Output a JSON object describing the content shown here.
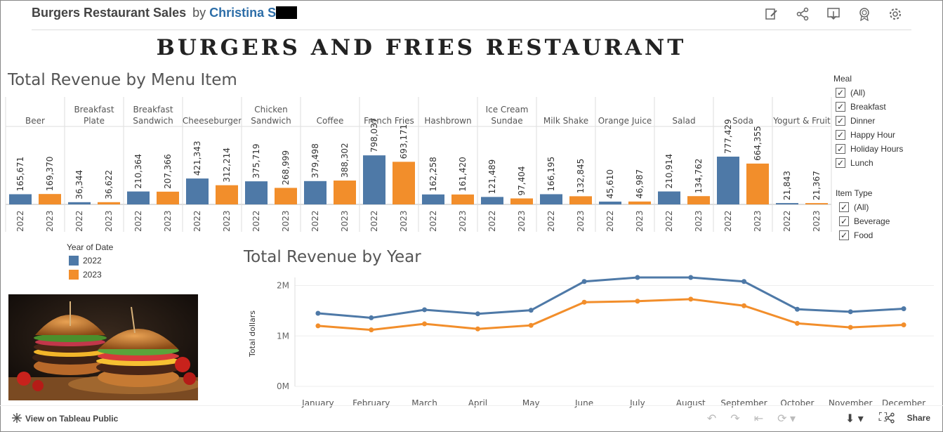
{
  "header": {
    "title": "Burgers Restaurant Sales",
    "by": "by",
    "author": "Christina S"
  },
  "banner": "BURGERS AND FRIES RESTAURANT",
  "toolbar_icons": [
    "edit-icon",
    "share-icon",
    "download-icon",
    "badge-icon",
    "gear-icon"
  ],
  "colors": {
    "y2022": "#4e79a7",
    "y2023": "#f28e2b"
  },
  "menu_chart": {
    "title": "Total Revenue by Menu Item"
  },
  "year_chart": {
    "title": "Total Revenue by Year"
  },
  "legend": {
    "title": "Year of Date",
    "items": [
      {
        "label": "2022",
        "color": "#4e79a7"
      },
      {
        "label": "2023",
        "color": "#f28e2b"
      }
    ]
  },
  "filters": {
    "meal": {
      "title": "Meal",
      "options": [
        "(All)",
        "Breakfast",
        "Dinner",
        "Happy Hour",
        "Holiday Hours",
        "Lunch"
      ]
    },
    "item_type": {
      "title": "Item Type",
      "options": [
        "(All)",
        "Beverage",
        "Food"
      ]
    }
  },
  "footer": {
    "view_label": "View on Tableau Public",
    "share_label": "Share"
  },
  "chart_data": [
    {
      "type": "bar",
      "title": "Total Revenue by Menu Item",
      "categories": [
        "Beer",
        "Breakfast Plate",
        "Breakfast Sandwich",
        "Cheeseburger",
        "Chicken Sandwich",
        "Coffee",
        "French Fries",
        "Hashbrown",
        "Ice Cream Sundae",
        "Milk Shake",
        "Orange Juice",
        "Salad",
        "Soda",
        "Yogurt & Fruit"
      ],
      "category_lines": [
        [
          "Beer"
        ],
        [
          "Breakfast",
          "Plate"
        ],
        [
          "Breakfast",
          "Sandwich"
        ],
        [
          "Cheeseburger"
        ],
        [
          "Chicken",
          "Sandwich"
        ],
        [
          "Coffee"
        ],
        [
          "French Fries"
        ],
        [
          "Hashbrown"
        ],
        [
          "Ice Cream",
          "Sundae"
        ],
        [
          "Milk Shake"
        ],
        [
          "Orange Juice"
        ],
        [
          "Salad"
        ],
        [
          "Soda"
        ],
        [
          "Yogurt & Fruit"
        ]
      ],
      "sub_categories": [
        "2022",
        "2023"
      ],
      "series": [
        {
          "name": "2022",
          "values": [
            165671,
            36344,
            210364,
            421343,
            375719,
            379498,
            798037,
            162258,
            121489,
            166195,
            45610,
            210914,
            777429,
            21843
          ]
        },
        {
          "name": "2023",
          "values": [
            169370,
            36622,
            207366,
            312214,
            268999,
            388302,
            693171,
            161420,
            97404,
            132845,
            46987,
            134762,
            664355,
            21367
          ]
        }
      ],
      "value_labels": [
        [
          "165,671",
          "169,370"
        ],
        [
          "36,344",
          "36,622"
        ],
        [
          "210,364",
          "207,366"
        ],
        [
          "421,343",
          "312,214"
        ],
        [
          "375,719",
          "268,999"
        ],
        [
          "379,498",
          "388,302"
        ],
        [
          "798,037",
          "693,171"
        ],
        [
          "162,258",
          "161,420"
        ],
        [
          "121,489",
          "97,404"
        ],
        [
          "166,195",
          "132,845"
        ],
        [
          "45,610",
          "46,987"
        ],
        [
          "210,914",
          "134,762"
        ],
        [
          "777,429",
          "664,355"
        ],
        [
          "21,843",
          "21,367"
        ]
      ]
    },
    {
      "type": "line",
      "title": "Total Revenue by Year",
      "ylabel": "Total dollars",
      "x": [
        "January",
        "February",
        "March",
        "April",
        "May",
        "June",
        "July",
        "August",
        "September",
        "October",
        "November",
        "December"
      ],
      "yticks": [
        "0M",
        "1M",
        "2M"
      ],
      "ylim": [
        0,
        2300000
      ],
      "series": [
        {
          "name": "2022",
          "values": [
            1450000,
            1360000,
            1520000,
            1440000,
            1510000,
            2080000,
            2160000,
            2160000,
            2080000,
            1530000,
            1480000,
            1540000
          ]
        },
        {
          "name": "2023",
          "values": [
            1200000,
            1120000,
            1240000,
            1140000,
            1210000,
            1670000,
            1690000,
            1730000,
            1600000,
            1250000,
            1170000,
            1220000
          ]
        }
      ]
    }
  ]
}
